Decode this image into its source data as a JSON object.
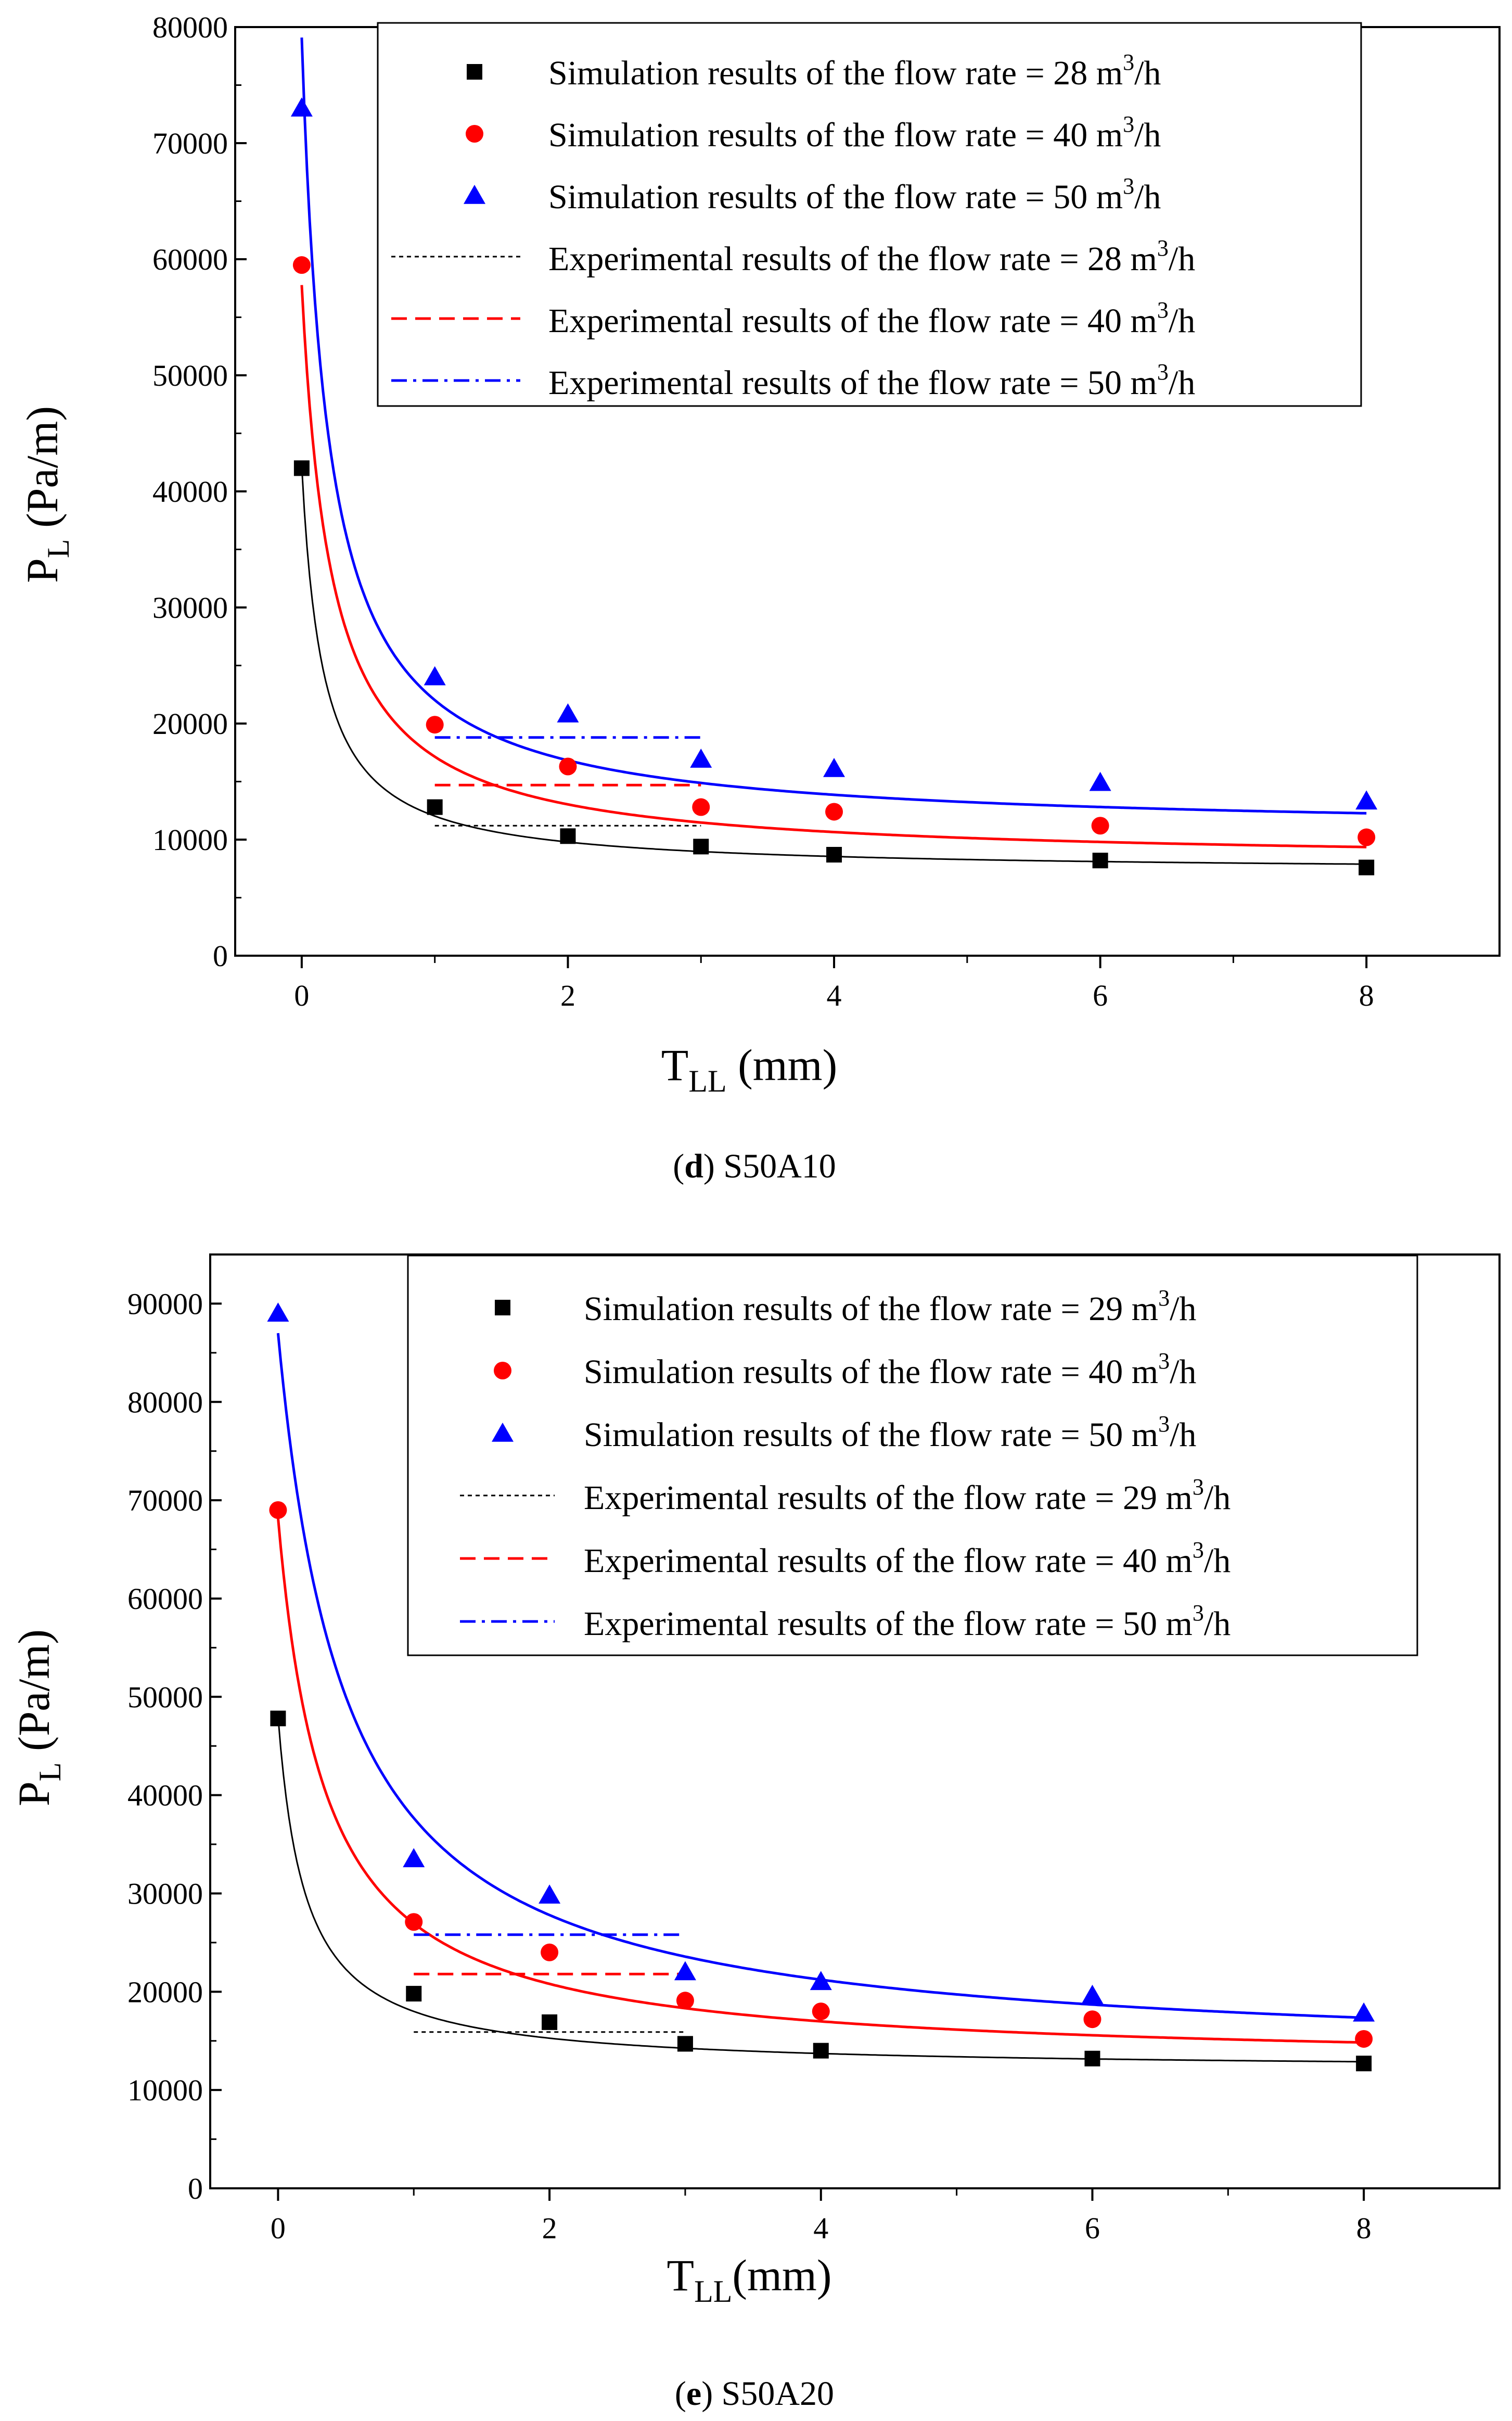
{
  "chart_data": [
    {
      "type": "scatter",
      "panel_label": "d",
      "caption": "S50A10",
      "xlabel": {
        "main": "T",
        "sub": "LL",
        "rest": " (mm)"
      },
      "ylabel": {
        "main": "P",
        "sub": "L",
        "rest": " (Pa/m)"
      },
      "xlim": [
        -0.5,
        9
      ],
      "ylim": [
        0,
        80000
      ],
      "x_ticks": [
        0,
        2,
        4,
        6,
        8
      ],
      "y_ticks": [
        0,
        10000,
        20000,
        30000,
        40000,
        50000,
        60000,
        70000,
        80000
      ],
      "x_tick_labels": [
        "0",
        "2",
        "4",
        "6",
        "8"
      ],
      "y_tick_labels": [
        "0",
        "10000",
        "20000",
        "30000",
        "40000",
        "50000",
        "60000",
        "70000",
        "80000"
      ],
      "legend_position": "top-right",
      "x": [
        0,
        1,
        2,
        3,
        4,
        6,
        8
      ],
      "series": [
        {
          "name": "Simulation results of the flow rate = 28 m³/h",
          "legend_prefix": "Simulation results of the flow rate = 28 m",
          "legend_sup": "3",
          "legend_suffix": "/h",
          "marker": "square",
          "color": "#000000",
          "values": [
            42000,
            12800,
            10300,
            9400,
            8700,
            8200,
            7600
          ]
        },
        {
          "name": "Simulation results of the flow rate = 40 m³/h",
          "legend_prefix": "Simulation results of the flow rate = 40 m",
          "legend_sup": "3",
          "legend_suffix": "/h",
          "marker": "circle",
          "color": "#ff0000",
          "values": [
            59500,
            19900,
            16300,
            12800,
            12400,
            11200,
            10200
          ]
        },
        {
          "name": "Simulation results of the flow rate = 50 m³/h",
          "legend_prefix": "Simulation results of the flow rate = 50 m",
          "legend_sup": "3",
          "legend_suffix": "/h",
          "marker": "triangle",
          "color": "#0000ff",
          "values": [
            73000,
            24000,
            20800,
            16900,
            16100,
            14900,
            13300
          ]
        }
      ],
      "fit_curves": [
        {
          "color": "#000000",
          "A": 7200,
          "B": 5600,
          "x0": 0.16
        },
        {
          "color": "#ff0000",
          "A": 8000,
          "B": 11200,
          "x0": 0.225
        },
        {
          "color": "#0000ff",
          "A": 10600,
          "B": 13700,
          "x0": 0.2
        }
      ],
      "experimental": [
        {
          "name": "Experimental results of the flow rate = 28 m³/h",
          "legend_prefix": "Experimental results of the flow rate = 28 m",
          "legend_sup": "3",
          "legend_suffix": "/h",
          "color": "#000000",
          "style": "dotted",
          "value": 11200,
          "x_range": [
            1,
            3
          ]
        },
        {
          "name": "Experimental results of the flow rate = 40 m³/h",
          "legend_prefix": "Experimental results of the flow rate = 40 m",
          "legend_sup": "3",
          "legend_suffix": "/h",
          "color": "#ff0000",
          "style": "dashed",
          "value": 14700,
          "x_range": [
            1,
            3
          ]
        },
        {
          "name": "Experimental results of the flow rate = 50 m³/h",
          "legend_prefix": "Experimental results of the flow rate = 50 m",
          "legend_sup": "3",
          "legend_suffix": "/h",
          "color": "#0000ff",
          "style": "dashdot",
          "value": 18800,
          "x_range": [
            1,
            3
          ]
        }
      ]
    },
    {
      "type": "scatter",
      "panel_label": "e",
      "caption": "S50A20",
      "xlabel": {
        "main": "T",
        "sub": "LL",
        "rest": "(mm)"
      },
      "ylabel": {
        "main": "P",
        "sub": "L",
        "rest": " (Pa/m)"
      },
      "xlim": [
        -0.5,
        9
      ],
      "ylim": [
        0,
        95000
      ],
      "x_ticks": [
        0,
        2,
        4,
        6,
        8
      ],
      "y_ticks": [
        0,
        10000,
        20000,
        30000,
        40000,
        50000,
        60000,
        70000,
        80000,
        90000
      ],
      "x_tick_labels": [
        "0",
        "2",
        "4",
        "6",
        "8"
      ],
      "y_tick_labels": [
        "0",
        "10000",
        "20000",
        "30000",
        "40000",
        "50000",
        "60000",
        "70000",
        "80000",
        "90000"
      ],
      "legend_position": "top-right",
      "x": [
        0,
        1,
        2,
        3,
        4,
        6,
        8
      ],
      "series": [
        {
          "name": "Simulation results of the flow rate = 29 m³/h",
          "legend_prefix": "Simulation results of the flow rate = 29 m",
          "legend_sup": "3",
          "legend_suffix": "/h",
          "marker": "square",
          "color": "#000000",
          "values": [
            47800,
            19800,
            16900,
            14700,
            14000,
            13200,
            12700
          ]
        },
        {
          "name": "Simulation results of the flow rate = 40 m³/h",
          "legend_prefix": "Simulation results of the flow rate = 40 m",
          "legend_sup": "3",
          "legend_suffix": "/h",
          "marker": "circle",
          "color": "#ff0000",
          "values": [
            69000,
            27100,
            24000,
            19100,
            18000,
            17200,
            15200
          ]
        },
        {
          "name": "Simulation results of the flow rate = 50 m³/h",
          "legend_prefix": "Simulation results of the flow rate = 50 m",
          "legend_sup": "3",
          "legend_suffix": "/h",
          "marker": "triangle",
          "color": "#0000ff",
          "values": [
            89000,
            33500,
            29800,
            22000,
            21000,
            19600,
            17800
          ]
        }
      ],
      "fit_curves": [
        {
          "color": "#000000",
          "A": 12000,
          "B": 7200,
          "x0": 0.2
        },
        {
          "color": "#ff0000",
          "A": 12500,
          "B": 19500,
          "x0": 0.35
        },
        {
          "color": "#0000ff",
          "A": 13000,
          "B": 37000,
          "x0": 0.5
        }
      ],
      "experimental": [
        {
          "name": "Experimental results of the flow rate = 29 m³/h",
          "legend_prefix": "Experimental results of the flow rate = 29 m",
          "legend_sup": "3",
          "legend_suffix": "/h",
          "color": "#000000",
          "style": "dotted",
          "value": 15900,
          "x_range": [
            1,
            3
          ]
        },
        {
          "name": "Experimental results of the flow rate = 40 m³/h",
          "legend_prefix": "Experimental results of the flow rate = 40 m",
          "legend_sup": "3",
          "legend_suffix": "/h",
          "color": "#ff0000",
          "style": "dashed",
          "value": 21800,
          "x_range": [
            1,
            3
          ]
        },
        {
          "name": "Experimental results of the flow rate = 50 m³/h",
          "legend_prefix": "Experimental results of the flow rate = 50 m",
          "legend_sup": "3",
          "legend_suffix": "/h",
          "color": "#0000ff",
          "style": "dashdot",
          "value": 25800,
          "x_range": [
            1,
            3
          ]
        }
      ]
    }
  ]
}
